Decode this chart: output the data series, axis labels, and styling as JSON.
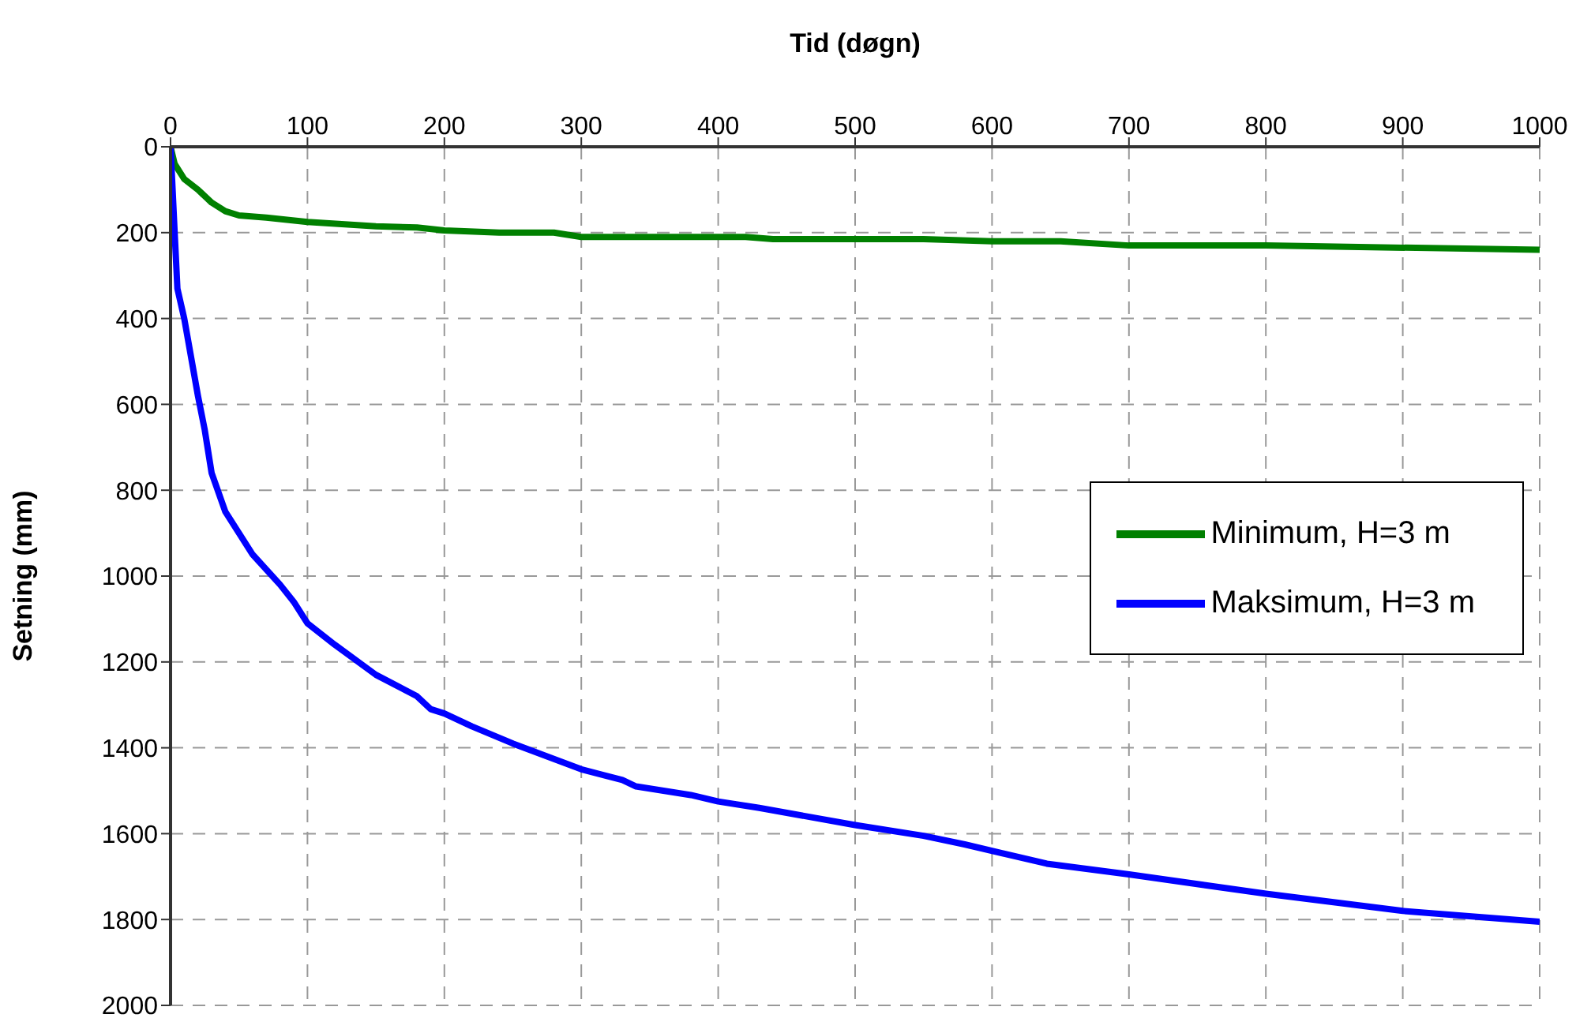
{
  "chart_data": {
    "type": "line",
    "xlabel": "Tid (døgn)",
    "ylabel": "Setning (mm)",
    "xlim": [
      0,
      1000
    ],
    "xticks": [
      0,
      100,
      200,
      300,
      400,
      500,
      600,
      700,
      800,
      900,
      1000
    ],
    "ylim": [
      2000,
      0
    ],
    "yticks": [
      0,
      200,
      400,
      600,
      800,
      1000,
      1200,
      1400,
      1600,
      1800,
      2000
    ],
    "grid": true,
    "legend": "right",
    "marker": "none",
    "line_style": "solid",
    "series": [
      {
        "name": "Minimum, H=3 m",
        "color": "#008000",
        "x": [
          0,
          3,
          10,
          20,
          30,
          40,
          50,
          70,
          100,
          150,
          180,
          200,
          240,
          280,
          300,
          420,
          440,
          550,
          600,
          650,
          700,
          800,
          1000
        ],
        "values": [
          0,
          40,
          75,
          100,
          130,
          150,
          160,
          165,
          175,
          185,
          188,
          195,
          200,
          200,
          210,
          210,
          215,
          215,
          220,
          220,
          230,
          230,
          240
        ]
      },
      {
        "name": "Maksimum, H=3 m",
        "color": "#0000ff",
        "x": [
          0,
          3,
          5,
          10,
          20,
          25,
          30,
          40,
          50,
          60,
          80,
          90,
          100,
          120,
          150,
          180,
          190,
          200,
          220,
          250,
          300,
          330,
          340,
          380,
          400,
          430,
          500,
          550,
          580,
          640,
          700,
          800,
          900,
          1000
        ],
        "values": [
          0,
          200,
          330,
          400,
          580,
          660,
          760,
          850,
          900,
          950,
          1020,
          1060,
          1110,
          1160,
          1230,
          1280,
          1310,
          1320,
          1350,
          1390,
          1450,
          1475,
          1490,
          1510,
          1525,
          1540,
          1580,
          1605,
          1625,
          1670,
          1695,
          1740,
          1780,
          1805
        ]
      }
    ]
  }
}
